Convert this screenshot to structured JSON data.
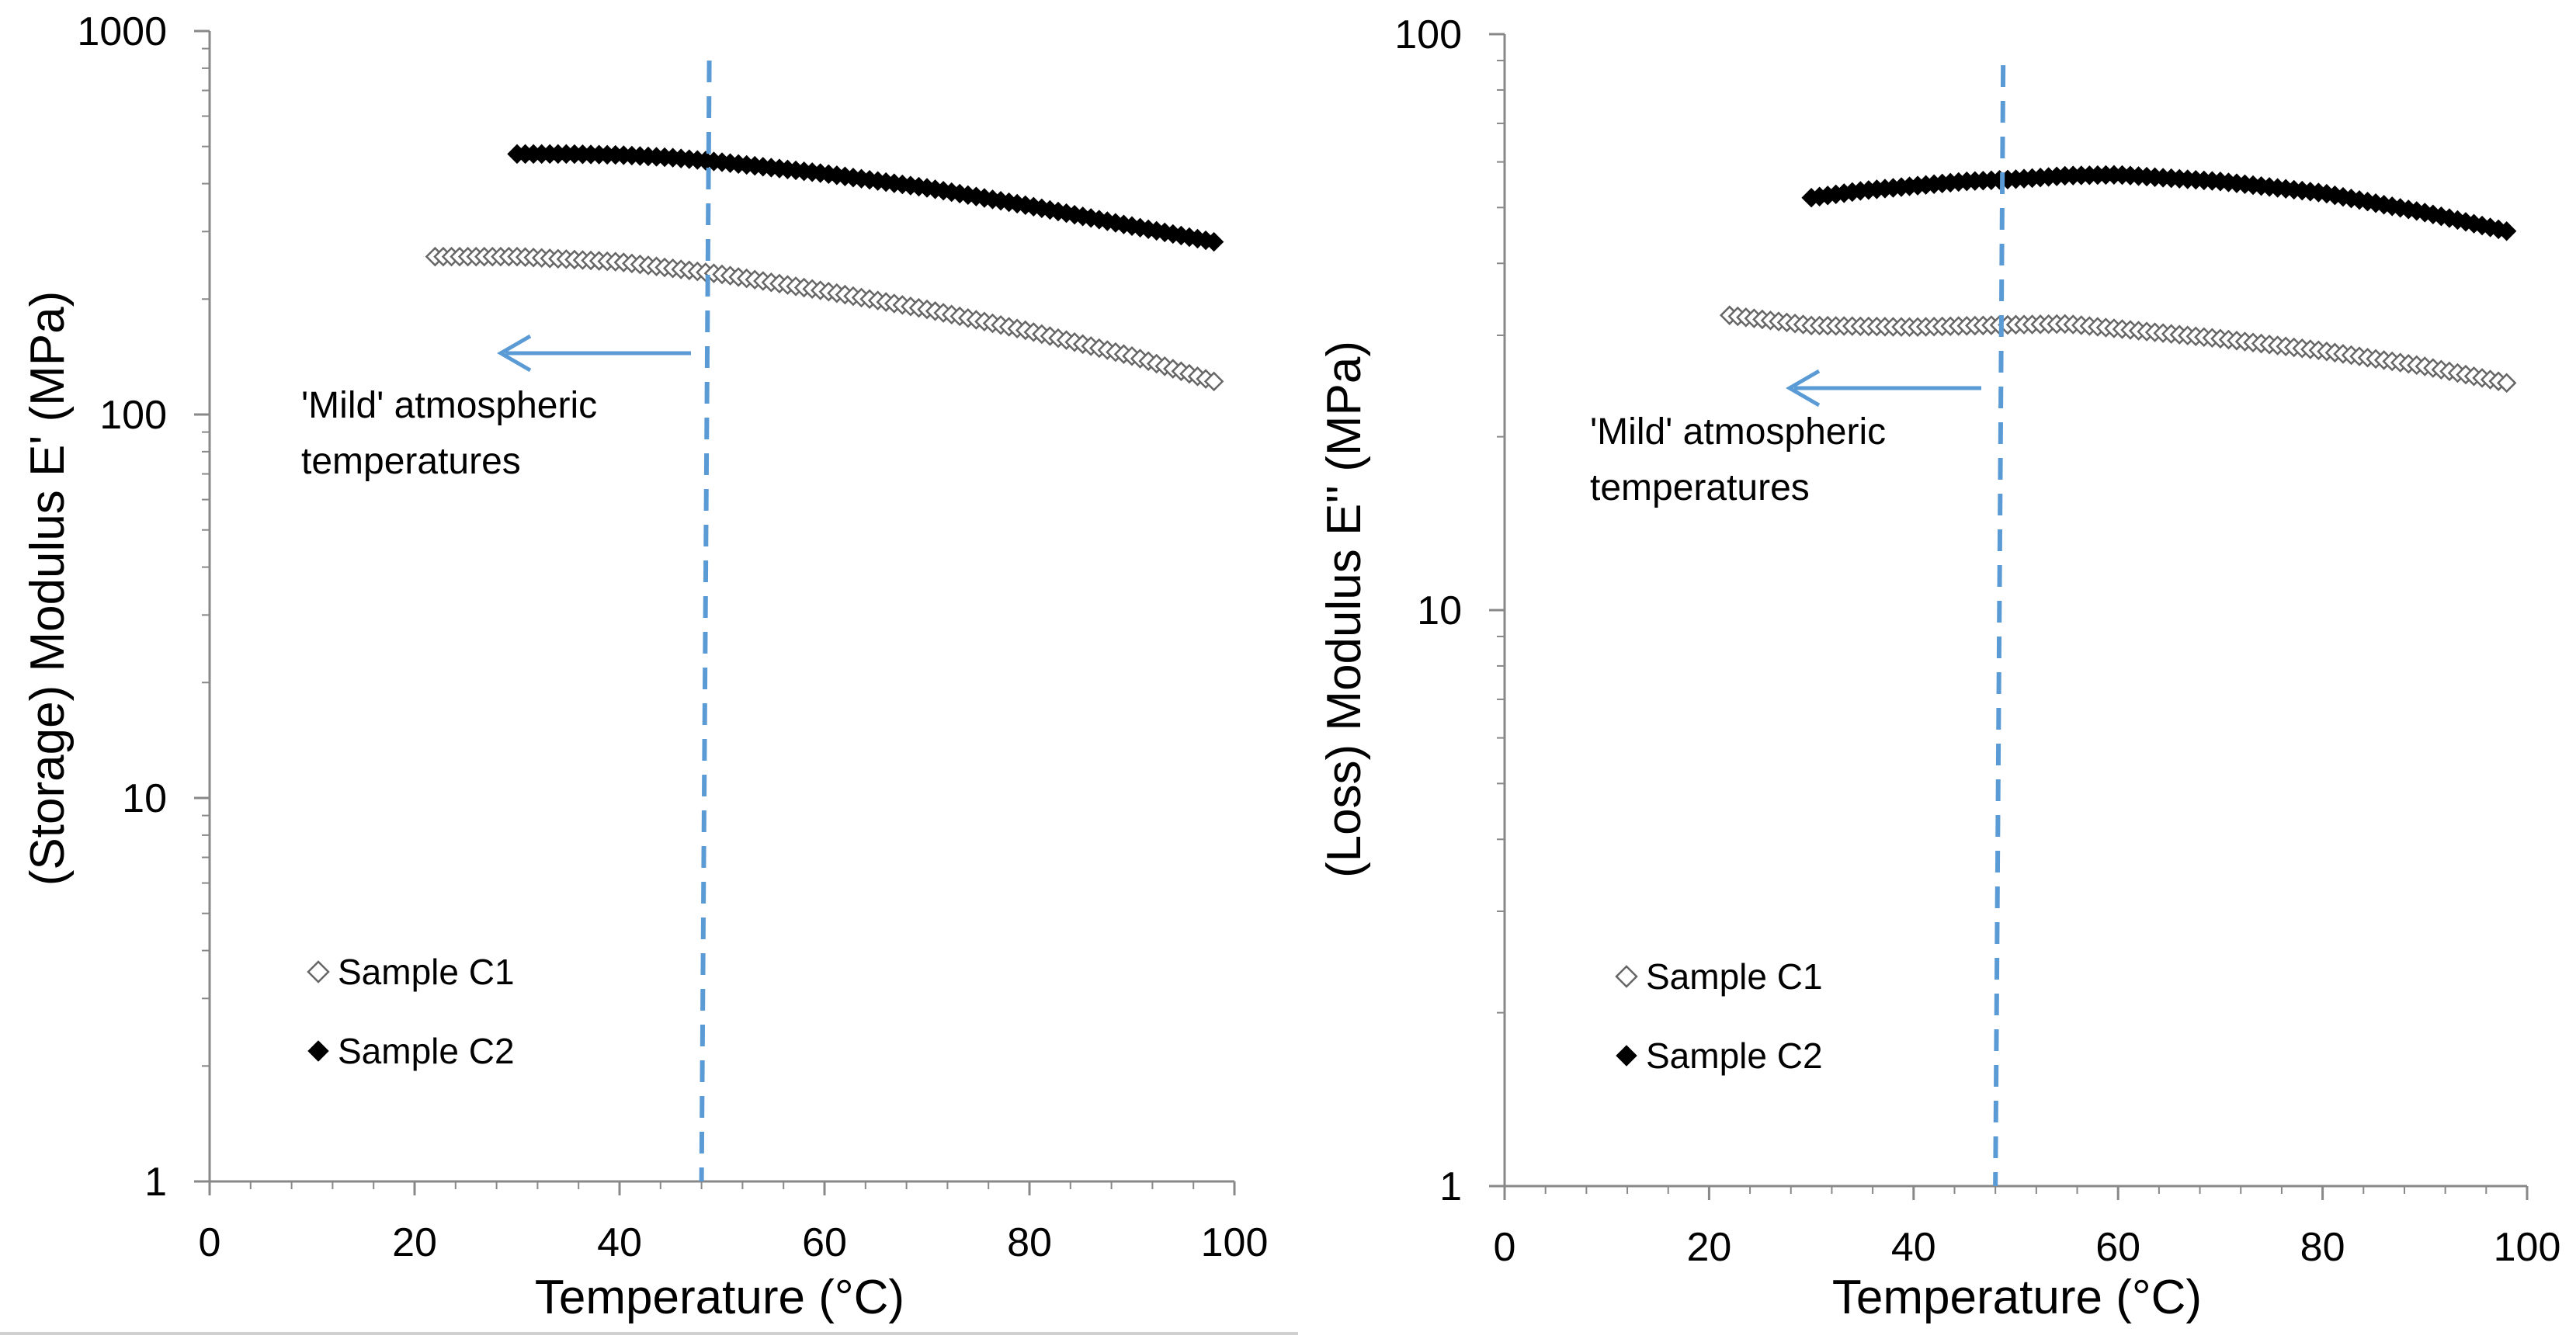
{
  "chart_data": [
    {
      "type": "scatter",
      "id": "storage",
      "ylabel": "(Storage) Modulus E' (MPa)",
      "xlabel": "Temperature (°C)",
      "xlim": [
        0,
        100
      ],
      "ylim": [
        1,
        1000
      ],
      "yscale": "log",
      "xticks": [
        "0",
        "20",
        "40",
        "60",
        "80",
        "100"
      ],
      "yticks": [
        "1",
        "10",
        "100",
        "1000"
      ],
      "grid": false,
      "legend_position": "bottom-left",
      "reference_line_x": 48,
      "annotation": {
        "line1": "'Mild' atmospheric",
        "line2": "temperatures"
      },
      "series": [
        {
          "name": "Sample C1",
          "marker": "open-diamond",
          "x": [
            22,
            30,
            40,
            50,
            60,
            70,
            80,
            90,
            98
          ],
          "y": [
            258,
            258,
            250,
            232,
            210,
            188,
            165,
            142,
            122
          ]
        },
        {
          "name": "Sample C2",
          "marker": "filled-diamond",
          "x": [
            30,
            35,
            40,
            45,
            50,
            60,
            70,
            80,
            90,
            98
          ],
          "y": [
            478,
            478,
            475,
            468,
            455,
            425,
            390,
            350,
            310,
            282
          ]
        }
      ]
    },
    {
      "type": "scatter",
      "id": "loss",
      "ylabel": "(Loss) Modulus E'' (MPa)",
      "xlabel": "Temperature (°C)",
      "xlim": [
        0,
        100
      ],
      "ylim": [
        1,
        100
      ],
      "yscale": "log",
      "xticks": [
        "0",
        "20",
        "40",
        "60",
        "80",
        "100"
      ],
      "yticks": [
        "1",
        "10",
        "100"
      ],
      "grid": false,
      "legend_position": "bottom-left",
      "reference_line_x": 48,
      "annotation": {
        "line1": "'Mild' atmospheric",
        "line2": "temperatures"
      },
      "series": [
        {
          "name": "Sample C1",
          "marker": "open-diamond",
          "x": [
            22,
            30,
            40,
            50,
            55,
            60,
            70,
            80,
            90,
            98
          ],
          "y": [
            32.5,
            31.2,
            31.0,
            31.3,
            31.4,
            30.8,
            29.6,
            28.2,
            26.5,
            24.8
          ]
        },
        {
          "name": "Sample C2",
          "marker": "filled-diamond",
          "x": [
            30,
            35,
            40,
            45,
            50,
            55,
            60,
            70,
            80,
            90,
            98
          ],
          "y": [
            52,
            53.5,
            54.5,
            55.5,
            56,
            56.8,
            57,
            55.5,
            53,
            49,
            45.5
          ]
        }
      ]
    }
  ]
}
